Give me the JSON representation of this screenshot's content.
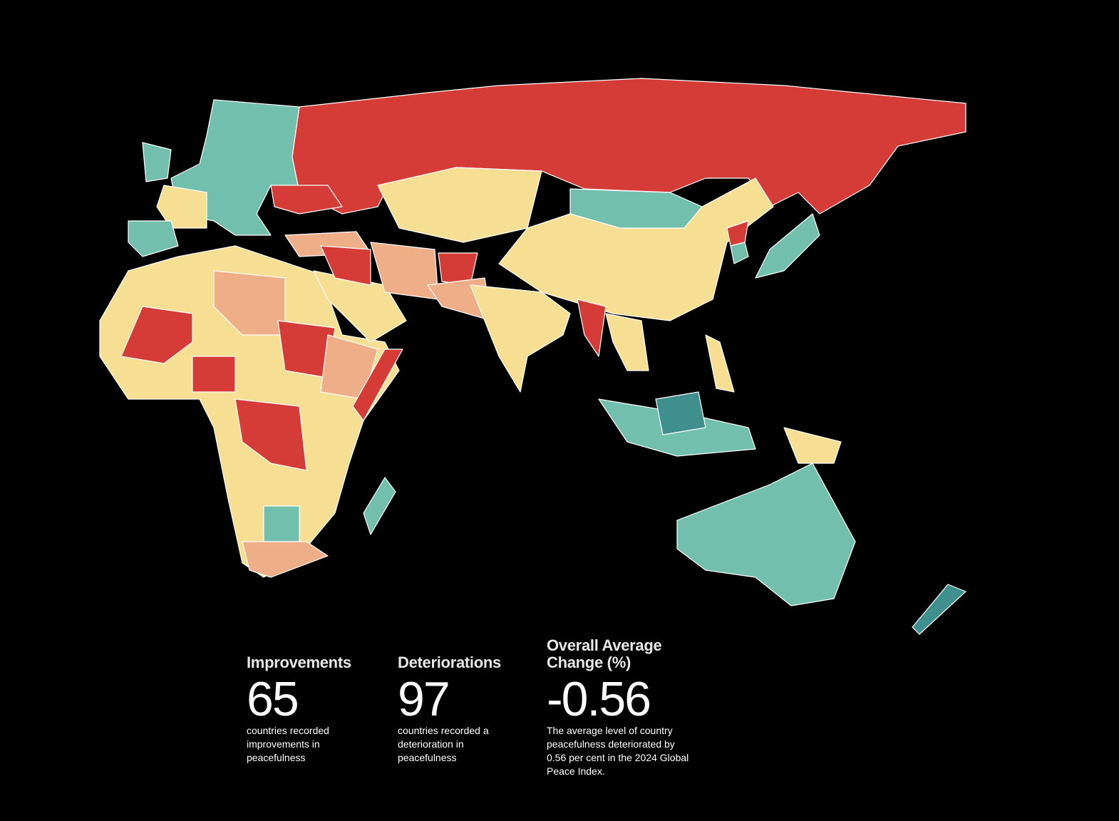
{
  "stats": [
    {
      "title": "Improvements",
      "value": 65,
      "description": "countries recorded improvements in peacefulness"
    },
    {
      "title": "Deteriorations",
      "value": 97,
      "description": "countries recorded a deterioration in peacefulness"
    },
    {
      "title": "Overall Average Change (%)",
      "value": -0.56,
      "description": "The average level of country peacefulness deteriorated by 0.56 per cent in the 2024 Global Peace Index."
    }
  ]
}
